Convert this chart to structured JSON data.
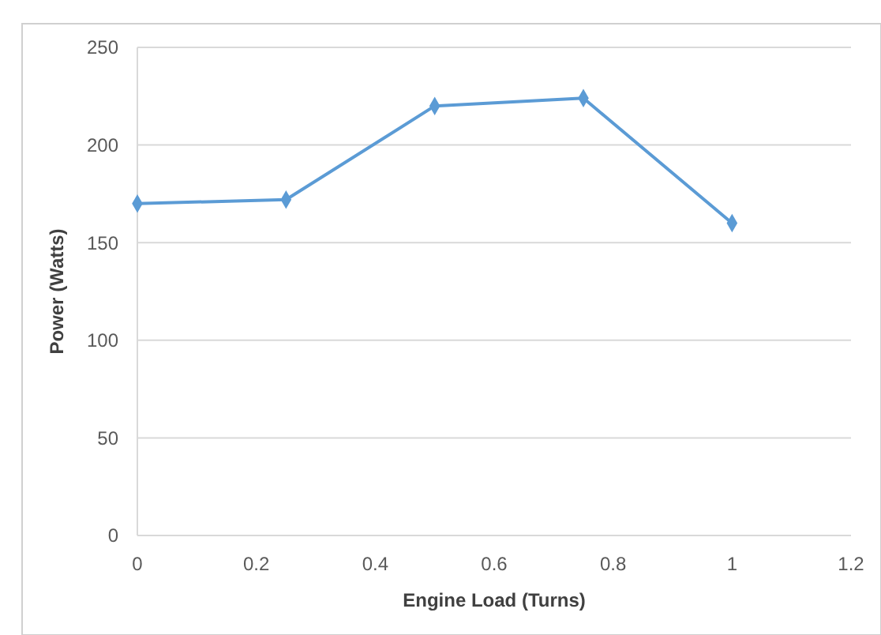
{
  "chart_data": {
    "type": "line",
    "xlabel": "Engine Load (Turns)",
    "ylabel": "Power (Watts)",
    "x": [
      0,
      0.25,
      0.5,
      0.75,
      1
    ],
    "series": [
      {
        "color": "#5b9bd5",
        "values": [
          170,
          172,
          220,
          224,
          160
        ]
      }
    ],
    "xlim": [
      0,
      1.2
    ],
    "xticks": [
      0,
      0.2,
      0.4,
      0.6,
      0.8,
      1,
      1.2
    ],
    "ylim": [
      0,
      250
    ],
    "yticks": [
      0,
      50,
      100,
      150,
      200,
      250
    ],
    "grid": "y",
    "marker": "diamond",
    "line_style": "solid"
  }
}
